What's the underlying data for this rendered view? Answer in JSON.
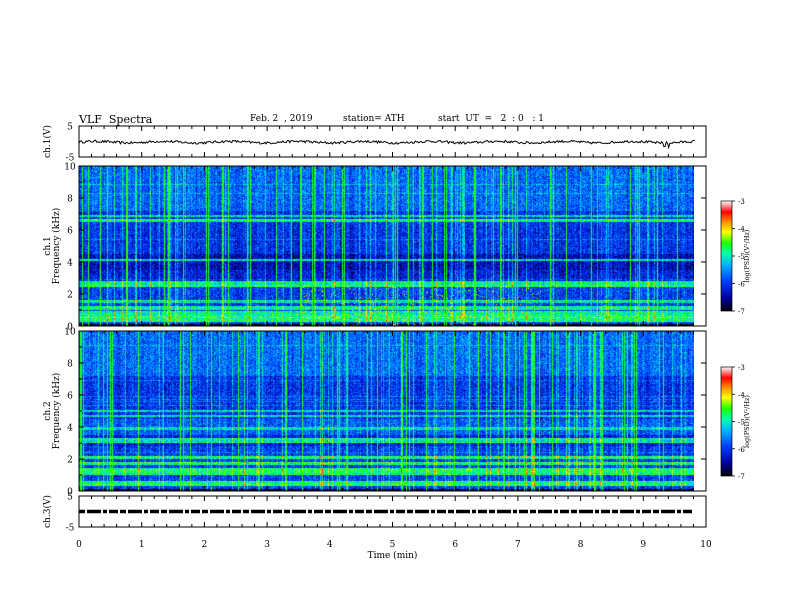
{
  "header": {
    "title": "VLF  Spectra",
    "date": "Feb. 2  , 2019",
    "station": "station= ATH",
    "start_ut": "start  UT  =   2  : 0   : 1"
  },
  "chart_data": [
    {
      "type": "line",
      "panel": "ch1-waveform",
      "ylabel": "ch.1(V)",
      "ylim": [
        -5,
        5
      ],
      "ytick_labels": [
        "5",
        "-5"
      ],
      "x_range_min": [
        0,
        9.82
      ],
      "level_V": -0.2,
      "noise_amplitude_V": 0.4
    },
    {
      "type": "heatmap",
      "panel": "ch1-spectrogram",
      "ylabel": "ch.1\nFrequency  (kHz)",
      "ylim": [
        0,
        10
      ],
      "ytick_labels": [
        "0",
        "2",
        "4",
        "6",
        "8",
        "10"
      ],
      "x_range_min": [
        0,
        9.82
      ],
      "colorbar": {
        "label": "log(PSD)(V²/Hz)",
        "range": [
          -7,
          -3
        ],
        "tick_labels": [
          "-3",
          "-4",
          "-5",
          "-6",
          "-7"
        ]
      },
      "strong_bands_kHz": [
        [
          0.2,
          0.5
        ],
        [
          0.5,
          0.9
        ],
        [
          1.0,
          1.2
        ],
        [
          1.4,
          1.6
        ],
        [
          2.4,
          2.7
        ]
      ],
      "tone_lines_kHz": [
        1.5,
        2.7,
        4.1,
        6.6,
        6.9
      ]
    },
    {
      "type": "heatmap",
      "panel": "ch2-spectrogram",
      "ylabel": "ch.2\nFrequency  (kHz)",
      "ylim": [
        0,
        10
      ],
      "ytick_labels": [
        "0",
        "2",
        "4",
        "6",
        "8",
        "10"
      ],
      "x_range_min": [
        0,
        9.82
      ],
      "colorbar": {
        "label": "log(PSD)(V²/Hz)",
        "range": [
          -7,
          -3
        ],
        "tick_labels": [
          "-3",
          "-4",
          "-5",
          "-6",
          "-7"
        ]
      },
      "strong_bands_kHz": [
        [
          0.3,
          0.6
        ],
        [
          1.0,
          1.4
        ],
        [
          1.6,
          1.8
        ],
        [
          2.0,
          2.2
        ],
        [
          3.0,
          3.3
        ]
      ],
      "tone_lines_kHz": [
        3.1,
        3.9,
        4.7,
        5.0
      ]
    },
    {
      "type": "line",
      "panel": "ch3-waveform",
      "ylabel": "ch.3(V)",
      "ylim": [
        -5,
        5
      ],
      "ytick_labels": [
        "5",
        "-5"
      ],
      "x_range_min": [
        0,
        9.82
      ],
      "level_V": 0,
      "style": "dashed"
    }
  ],
  "x_axis": {
    "label": "Time  (min)",
    "range": [
      0,
      10
    ],
    "tick_labels": [
      "0",
      "1",
      "2",
      "3",
      "4",
      "5",
      "6",
      "7",
      "8",
      "9",
      "10"
    ]
  },
  "colors": {
    "colormap": [
      "#000000",
      "#0000a0",
      "#0044ff",
      "#00a0ff",
      "#00ffff",
      "#00ff40",
      "#ffff00",
      "#ff8000",
      "#ff0000",
      "#ffffff"
    ]
  }
}
